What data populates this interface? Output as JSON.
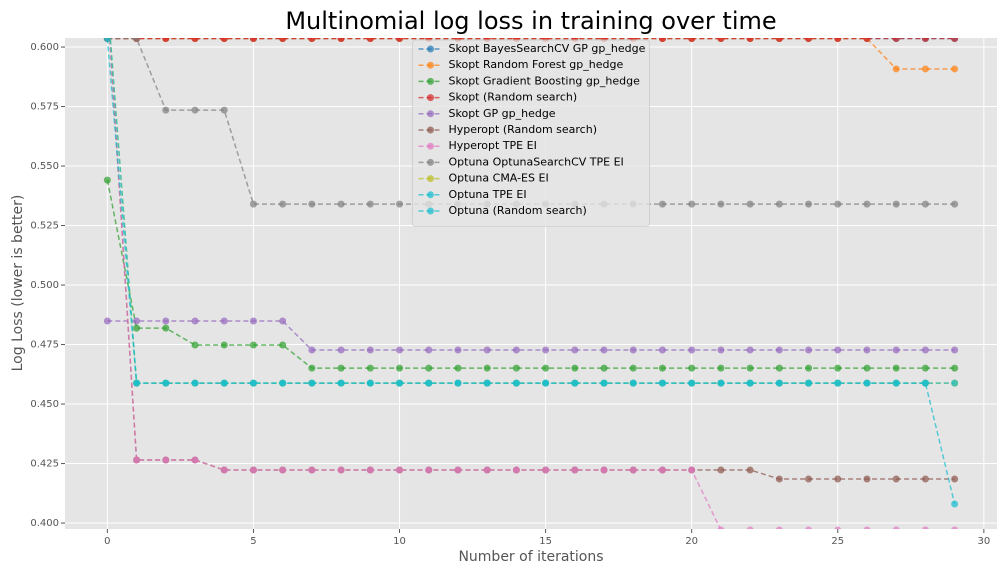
{
  "chart_data": {
    "type": "line",
    "title": "Multinomial log loss in training over time",
    "xlabel": "Number of iterations",
    "ylabel": "Log Loss (lower is better)",
    "x": [
      0,
      1,
      2,
      3,
      4,
      5,
      6,
      7,
      8,
      9,
      10,
      11,
      12,
      13,
      14,
      15,
      16,
      17,
      18,
      19,
      20,
      21,
      22,
      23,
      24,
      25,
      26,
      27,
      28,
      29
    ],
    "xlim": [
      -1.45,
      30.45
    ],
    "xticks": [
      0,
      5,
      10,
      15,
      20,
      25,
      30
    ],
    "ylim": [
      0.3975,
      0.6038
    ],
    "yticks": [
      {
        "value": 0.4,
        "label": "0.400"
      },
      0.425,
      {
        "value": 0.45,
        "label": "0.450"
      },
      0.475,
      {
        "value": 0.5,
        "label": "0.500"
      },
      0.525,
      {
        "value": 0.55,
        "label": "0.550"
      },
      0.575,
      {
        "value": 0.6,
        "label": "0.600"
      }
    ],
    "grid": true,
    "legend": "upper center",
    "series": [
      {
        "name": "Skopt BayesSearchCV GP gp_hedge",
        "color": "#1f77b4",
        "values": [
          0.6036,
          0.6036,
          0.6036,
          0.6036,
          0.6036,
          0.6036,
          0.6036,
          0.6036,
          0.6036,
          0.6036,
          0.6036,
          0.6036,
          0.6036,
          0.6036,
          0.6036,
          0.6036,
          0.6036,
          0.6036,
          0.6036,
          0.6036,
          0.6036,
          0.6036,
          0.6036,
          0.6036,
          0.6036,
          0.6036,
          0.6036,
          0.6036,
          0.6036,
          0.6036
        ]
      },
      {
        "name": "Skopt Random Forest gp_hedge",
        "color": "#ff7f0e",
        "values": [
          0.6036,
          0.6036,
          0.6036,
          0.6036,
          0.6036,
          0.6036,
          0.6036,
          0.6036,
          0.6036,
          0.6036,
          0.6036,
          0.6036,
          0.6036,
          0.6036,
          0.6036,
          0.6036,
          0.6036,
          0.6036,
          0.6036,
          0.6036,
          0.6036,
          0.6036,
          0.6036,
          0.6036,
          0.6036,
          0.6036,
          0.6036,
          0.5908,
          0.5908,
          0.5908
        ]
      },
      {
        "name": "Skopt Gradient Boosting gp_hedge",
        "color": "#2ca02c",
        "values": [
          0.5441,
          0.4819,
          0.4819,
          0.4748,
          0.4748,
          0.4748,
          0.4748,
          0.4651,
          0.4651,
          0.4651,
          0.4651,
          0.4651,
          0.4651,
          0.4651,
          0.4651,
          0.4651,
          0.4651,
          0.4651,
          0.4651,
          0.4651,
          0.4651,
          0.4651,
          0.4651,
          0.4651,
          0.4651,
          0.4651,
          0.4651,
          0.4651,
          0.4651,
          0.4651
        ]
      },
      {
        "name": "Skopt (Random search)",
        "color": "#d62728",
        "values": [
          0.6036,
          0.6036,
          0.6036,
          0.6036,
          0.6036,
          0.6036,
          0.6036,
          0.6036,
          0.6036,
          0.6036,
          0.6036,
          0.6036,
          0.6036,
          0.6036,
          0.6036,
          0.6036,
          0.6036,
          0.6036,
          0.6036,
          0.6036,
          0.6036,
          0.6036,
          0.6036,
          0.6036,
          0.6036,
          0.6036,
          0.6036,
          0.6036,
          0.6036,
          0.6036
        ]
      },
      {
        "name": "Skopt GP gp_hedge",
        "color": "#9467bd",
        "values": [
          0.4849,
          0.4849,
          0.4849,
          0.4849,
          0.4849,
          0.4849,
          0.4849,
          0.4727,
          0.4727,
          0.4727,
          0.4727,
          0.4727,
          0.4727,
          0.4727,
          0.4727,
          0.4727,
          0.4727,
          0.4727,
          0.4727,
          0.4727,
          0.4727,
          0.4727,
          0.4727,
          0.4727,
          0.4727,
          0.4727,
          0.4727,
          0.4727,
          0.4727,
          0.4727
        ]
      },
      {
        "name": "Hyperopt (Random search)",
        "color": "#8c564b",
        "values": [
          0.62,
          0.4265,
          0.4265,
          0.4265,
          0.4223,
          0.4223,
          0.4223,
          0.4223,
          0.4223,
          0.4223,
          0.4223,
          0.4223,
          0.4223,
          0.4223,
          0.4223,
          0.4223,
          0.4223,
          0.4223,
          0.4223,
          0.4223,
          0.4223,
          0.4223,
          0.4223,
          0.4185,
          0.4185,
          0.4185,
          0.4185,
          0.4185,
          0.4185,
          0.4185
        ]
      },
      {
        "name": "Hyperopt TPE EI",
        "color": "#e377c2",
        "values": [
          0.62,
          0.4265,
          0.4265,
          0.4265,
          0.4223,
          0.4223,
          0.4223,
          0.4223,
          0.4223,
          0.4223,
          0.4223,
          0.4223,
          0.4223,
          0.4223,
          0.4223,
          0.4223,
          0.4223,
          0.4223,
          0.4223,
          0.4223,
          0.4223,
          0.3971,
          0.3971,
          0.3971,
          0.3971,
          0.3971,
          0.3971,
          0.3971,
          0.3971,
          0.3971
        ]
      },
      {
        "name": "Optuna OptunaSearchCV TPE EI",
        "color": "#7f7f7f",
        "values": [
          0.6036,
          0.6036,
          0.5735,
          0.5735,
          0.5735,
          0.534,
          0.534,
          0.534,
          0.534,
          0.534,
          0.534,
          0.534,
          0.534,
          0.534,
          0.534,
          0.534,
          0.534,
          0.534,
          0.534,
          0.534,
          0.534,
          0.534,
          0.534,
          0.534,
          0.534,
          0.534,
          0.534,
          0.534,
          0.534,
          0.534
        ]
      },
      {
        "name": "Optuna CMA-ES EI",
        "color": "#bcbd22",
        "values": [
          0.62,
          0.4588,
          0.4588,
          0.4588,
          0.4588,
          0.4588,
          0.4588,
          0.4588,
          0.4588,
          0.4588,
          0.4588,
          0.4588,
          0.4588,
          0.4588,
          0.4588,
          0.4588,
          0.4588,
          0.4588,
          0.4588,
          0.4588,
          0.4588,
          0.4588,
          0.4588,
          0.4588,
          0.4588,
          0.4588,
          0.4588,
          0.4588,
          0.4588,
          0.4588
        ]
      },
      {
        "name": "Optuna TPE EI",
        "color": "#17becf",
        "values": [
          0.62,
          0.4588,
          0.4588,
          0.4588,
          0.4588,
          0.4588,
          0.4588,
          0.4588,
          0.4588,
          0.4588,
          0.4588,
          0.4588,
          0.4588,
          0.4588,
          0.4588,
          0.4588,
          0.4588,
          0.4588,
          0.4588,
          0.4588,
          0.4588,
          0.4588,
          0.4588,
          0.4588,
          0.4588,
          0.4588,
          0.4588,
          0.4588,
          0.4588,
          0.4588
        ]
      },
      {
        "name": "Optuna (Random search)",
        "color": "#17becf",
        "values": [
          0.6036,
          0.4588,
          0.4588,
          0.4588,
          0.4588,
          0.4588,
          0.4588,
          0.4588,
          0.4588,
          0.4588,
          0.4588,
          0.4588,
          0.4588,
          0.4588,
          0.4588,
          0.4588,
          0.4588,
          0.4588,
          0.4588,
          0.4588,
          0.4588,
          0.4588,
          0.4588,
          0.4588,
          0.4588,
          0.4588,
          0.4588,
          0.4588,
          0.4588,
          0.408
        ]
      }
    ]
  }
}
